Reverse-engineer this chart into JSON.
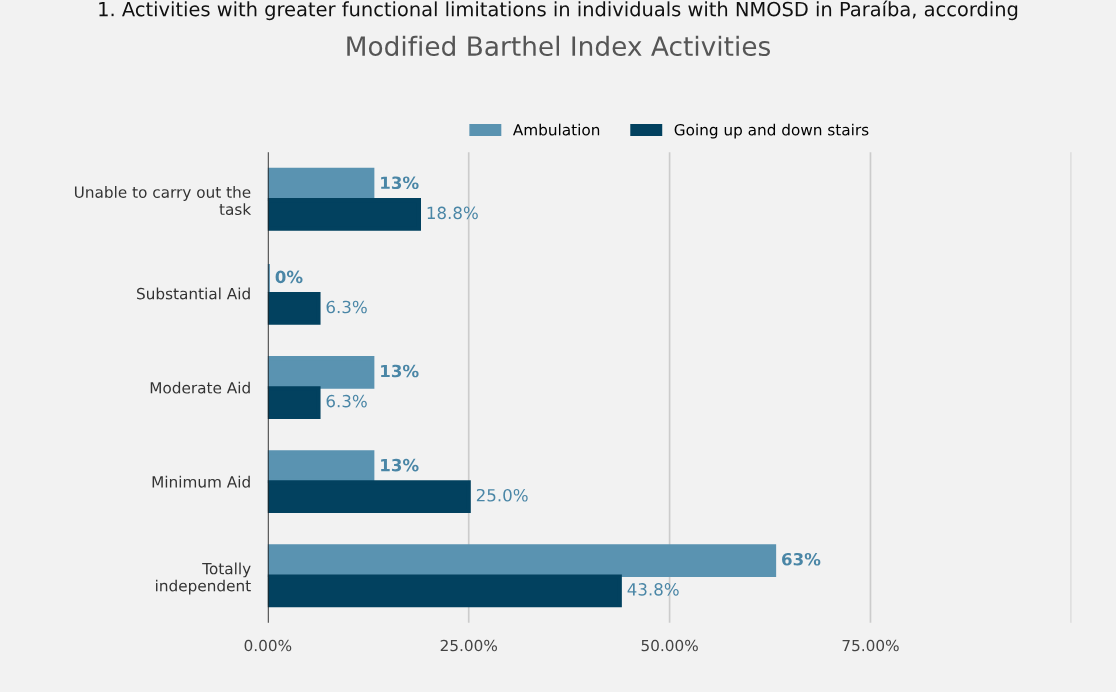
{
  "chart_data": {
    "type": "bar",
    "orientation": "horizontal",
    "title": "Modified Barthel Index Activities",
    "annotations": [
      "1. Activities with greater functional limitations in individuals with NMOSD in Paraíba, according"
    ],
    "categories": [
      "Unable to carry out the\ntask",
      "Substantial Aid",
      "Moderate Aid",
      "Minimum Aid",
      "Totally\nindependent"
    ],
    "series": [
      {
        "name": "Ambulation",
        "color": "#5a93b1",
        "values": [
          13,
          0,
          13,
          13,
          63
        ],
        "value_labels": [
          "13%",
          "0%",
          "13%",
          "13%",
          "63%"
        ]
      },
      {
        "name": "Going up and down stairs",
        "color": "#02415f",
        "values": [
          18.8,
          6.3,
          6.3,
          25.0,
          43.8
        ],
        "value_labels": [
          "18.8%",
          "6.3%",
          "6.3%",
          "25.0%",
          "43.8%"
        ]
      }
    ],
    "xlim": [
      0,
      100
    ],
    "xticks": [
      {
        "value": 0,
        "label": "0.00%"
      },
      {
        "value": 25,
        "label": "25.00%"
      },
      {
        "value": 50,
        "label": "50.00%"
      },
      {
        "value": 75,
        "label": "75.00%"
      },
      {
        "value": 100,
        "label": null
      }
    ],
    "grid": "x",
    "legend": "top"
  }
}
